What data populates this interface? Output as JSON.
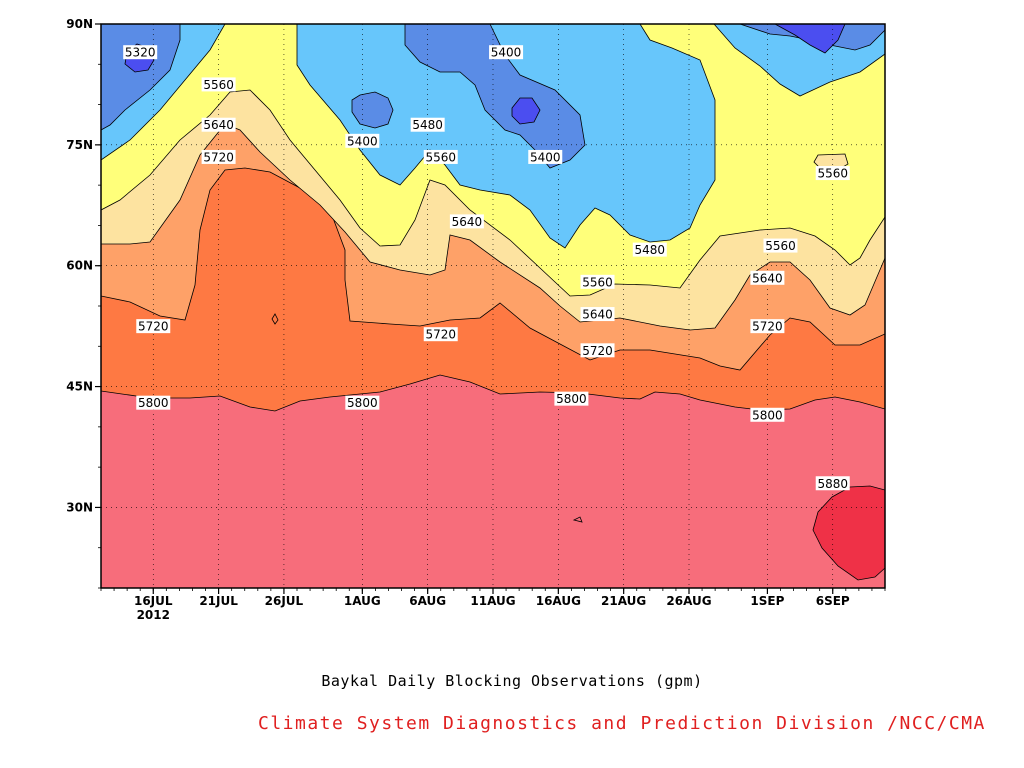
{
  "chart_data": {
    "type": "heatmap",
    "title": "Baykal Daily Blocking Observations (gpm)",
    "x_ticks": [
      "16JUL",
      "21JUL",
      "26JUL",
      "1AUG",
      "6AUG",
      "11AUG",
      "16AUG",
      "21AUG",
      "26AUG",
      "1SEP",
      "6SEP"
    ],
    "x_tick_dates": [
      "2012-07-16",
      "2012-07-21",
      "2012-07-26",
      "2012-08-01",
      "2012-08-06",
      "2012-08-11",
      "2012-08-16",
      "2012-08-21",
      "2012-08-26",
      "2012-09-01",
      "2012-09-06"
    ],
    "x_year_label": "2012",
    "xlim": [
      "2012-07-12",
      "2012-09-10"
    ],
    "y_ticks": [
      "90N",
      "75N",
      "60N",
      "45N",
      "30N"
    ],
    "y_tick_values": [
      90,
      75,
      60,
      45,
      30
    ],
    "ylim": [
      20,
      90
    ],
    "contour_levels": [
      5320,
      5400,
      5480,
      5560,
      5640,
      5720,
      5800,
      5880
    ],
    "level_colors": {
      "below_5320": "#4b4ef0",
      "5320_5400": "#5a8ce6",
      "5400_5480": "#67c6fb",
      "5480_5560": "#ffff7a",
      "5560_5640": "#fde3a0",
      "5640_5720": "#fea168",
      "5720_5800": "#fe7943",
      "5800_5880": "#f76d7b",
      "above_5880": "#ef3147"
    },
    "contour_labels": [
      {
        "text": "5320",
        "date": "2012-07-15",
        "lat": 86.5
      },
      {
        "text": "5560",
        "date": "2012-07-21",
        "lat": 82.5
      },
      {
        "text": "5640",
        "date": "2012-07-21",
        "lat": 77.5
      },
      {
        "text": "5720",
        "date": "2012-07-21",
        "lat": 73.5
      },
      {
        "text": "5400",
        "date": "2012-08-01",
        "lat": 75.5
      },
      {
        "text": "5480",
        "date": "2012-08-06",
        "lat": 77.5
      },
      {
        "text": "5560",
        "date": "2012-08-07",
        "lat": 73.5
      },
      {
        "text": "5400",
        "date": "2012-08-12",
        "lat": 86.5
      },
      {
        "text": "5400",
        "date": "2012-08-15",
        "lat": 73.5
      },
      {
        "text": "5640",
        "date": "2012-08-09",
        "lat": 65.5
      },
      {
        "text": "5480",
        "date": "2012-08-23",
        "lat": 62.0
      },
      {
        "text": "5560",
        "date": "2012-08-19",
        "lat": 58.0
      },
      {
        "text": "5640",
        "date": "2012-08-19",
        "lat": 54.0
      },
      {
        "text": "5720",
        "date": "2012-08-19",
        "lat": 49.5
      },
      {
        "text": "5800",
        "date": "2012-08-17",
        "lat": 43.5
      },
      {
        "text": "5720",
        "date": "2012-07-16",
        "lat": 52.5
      },
      {
        "text": "5800",
        "date": "2012-07-16",
        "lat": 43.0
      },
      {
        "text": "5720",
        "date": "2012-08-07",
        "lat": 51.5
      },
      {
        "text": "5800",
        "date": "2012-08-01",
        "lat": 43.0
      },
      {
        "text": "5560",
        "date": "2012-09-02",
        "lat": 62.5
      },
      {
        "text": "5640",
        "date": "2012-09-01",
        "lat": 58.5
      },
      {
        "text": "5720",
        "date": "2012-09-01",
        "lat": 52.5
      },
      {
        "text": "5800",
        "date": "2012-09-01",
        "lat": 41.5
      },
      {
        "text": "5560",
        "date": "2012-09-06",
        "lat": 71.5
      },
      {
        "text": "5880",
        "date": "2012-09-06",
        "lat": 33.0
      }
    ]
  },
  "footer": {
    "title": "Baykal Daily Blocking Observations (gpm)",
    "credit": "Climate System Diagnostics and Prediction Division /NCC/CMA"
  }
}
